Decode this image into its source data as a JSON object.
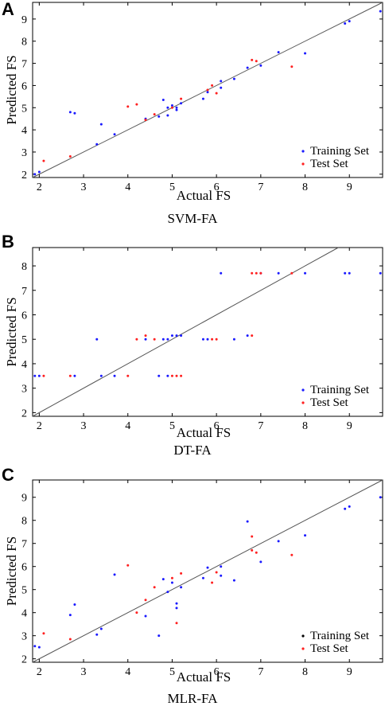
{
  "panels": [
    {
      "letter": "A",
      "caption": "SVM-FA"
    },
    {
      "letter": "B",
      "caption": "DT-FA"
    },
    {
      "letter": "C",
      "caption": "MLR-FA"
    }
  ],
  "colors": {
    "training": "#1a1aff",
    "test": "#ff2020",
    "legend_marker_c_training": "#000000",
    "frame": "#000000",
    "diagonal": "#555555"
  },
  "chart_data": [
    {
      "type": "scatter",
      "title": "SVM-FA",
      "xlabel": "Actual FS",
      "ylabel": "Predicted FS",
      "xlim": [
        1.85,
        9.75
      ],
      "ylim": [
        1.85,
        9.75
      ],
      "xticks": [
        2,
        3,
        4,
        5,
        6,
        7,
        8,
        9
      ],
      "yticks": [
        2,
        3,
        4,
        5,
        6,
        7,
        8,
        9
      ],
      "diagonal": true,
      "legend_position": "bottom-right",
      "series": [
        {
          "name": "Training Set",
          "color": "#1a1aff",
          "points": [
            [
              1.9,
              2.0
            ],
            [
              2.0,
              2.1
            ],
            [
              2.7,
              4.8
            ],
            [
              2.8,
              4.75
            ],
            [
              3.3,
              3.35
            ],
            [
              3.4,
              4.25
            ],
            [
              3.7,
              3.8
            ],
            [
              4.4,
              4.5
            ],
            [
              4.7,
              4.6
            ],
            [
              4.8,
              5.35
            ],
            [
              4.9,
              4.65
            ],
            [
              4.9,
              5.0
            ],
            [
              5.0,
              5.1
            ],
            [
              5.1,
              4.9
            ],
            [
              5.1,
              5.0
            ],
            [
              5.2,
              5.2
            ],
            [
              5.7,
              5.4
            ],
            [
              5.8,
              5.7
            ],
            [
              6.1,
              6.2
            ],
            [
              6.1,
              5.9
            ],
            [
              6.4,
              6.3
            ],
            [
              6.7,
              6.8
            ],
            [
              7.0,
              6.9
            ],
            [
              7.4,
              7.5
            ],
            [
              8.0,
              7.45
            ],
            [
              8.9,
              8.8
            ],
            [
              9.0,
              8.9
            ],
            [
              9.7,
              9.35
            ]
          ]
        },
        {
          "name": "Test Set",
          "color": "#ff2020",
          "points": [
            [
              2.1,
              2.6
            ],
            [
              2.7,
              2.8
            ],
            [
              4.0,
              5.05
            ],
            [
              4.2,
              5.15
            ],
            [
              4.4,
              4.45
            ],
            [
              4.6,
              4.7
            ],
            [
              5.0,
              5.0
            ],
            [
              5.2,
              5.4
            ],
            [
              5.8,
              5.8
            ],
            [
              5.9,
              6.0
            ],
            [
              6.0,
              5.65
            ],
            [
              6.8,
              7.15
            ],
            [
              6.9,
              7.1
            ],
            [
              7.7,
              6.85
            ]
          ]
        }
      ]
    },
    {
      "type": "scatter",
      "title": "DT-FA",
      "xlabel": "Actual FS",
      "ylabel": "Predicted FS",
      "xlim": [
        1.85,
        9.75
      ],
      "ylim": [
        1.85,
        8.75
      ],
      "xticks": [
        2,
        3,
        4,
        5,
        6,
        7,
        8,
        9
      ],
      "yticks": [
        2,
        3,
        4,
        5,
        6,
        7,
        8
      ],
      "diagonal": true,
      "legend_position": "bottom-right",
      "series": [
        {
          "name": "Training Set",
          "color": "#1a1aff",
          "points": [
            [
              1.9,
              3.5
            ],
            [
              2.0,
              3.5
            ],
            [
              2.8,
              3.5
            ],
            [
              3.3,
              5.0
            ],
            [
              3.4,
              3.5
            ],
            [
              3.7,
              3.5
            ],
            [
              4.4,
              5.0
            ],
            [
              4.7,
              3.5
            ],
            [
              4.8,
              5.0
            ],
            [
              4.9,
              3.5
            ],
            [
              4.9,
              5.0
            ],
            [
              5.0,
              5.15
            ],
            [
              5.1,
              5.15
            ],
            [
              5.2,
              5.15
            ],
            [
              5.7,
              5.0
            ],
            [
              5.8,
              5.0
            ],
            [
              6.1,
              7.7
            ],
            [
              6.4,
              5.0
            ],
            [
              6.7,
              5.15
            ],
            [
              7.0,
              7.7
            ],
            [
              7.4,
              7.7
            ],
            [
              8.0,
              7.7
            ],
            [
              8.9,
              7.7
            ],
            [
              9.0,
              7.7
            ],
            [
              9.7,
              7.7
            ]
          ]
        },
        {
          "name": "Test Set",
          "color": "#ff2020",
          "points": [
            [
              2.1,
              3.5
            ],
            [
              2.7,
              3.5
            ],
            [
              4.0,
              3.5
            ],
            [
              4.2,
              5.0
            ],
            [
              4.4,
              5.15
            ],
            [
              4.6,
              5.0
            ],
            [
              5.0,
              3.5
            ],
            [
              5.1,
              3.5
            ],
            [
              5.2,
              3.5
            ],
            [
              5.9,
              5.0
            ],
            [
              6.0,
              5.0
            ],
            [
              6.8,
              7.7
            ],
            [
              6.8,
              5.15
            ],
            [
              6.9,
              7.7
            ],
            [
              7.0,
              7.7
            ],
            [
              7.7,
              7.7
            ]
          ]
        }
      ]
    },
    {
      "type": "scatter",
      "title": "MLR-FA",
      "xlabel": "Actual FS",
      "ylabel": "Predicted FS",
      "xlim": [
        1.85,
        9.75
      ],
      "ylim": [
        1.85,
        9.75
      ],
      "xticks": [
        2,
        3,
        4,
        5,
        6,
        7,
        8,
        9
      ],
      "yticks": [
        2,
        3,
        4,
        5,
        6,
        7,
        8,
        9
      ],
      "diagonal": true,
      "legend_position": "bottom-right",
      "series": [
        {
          "name": "Training Set",
          "color": "#1a1aff",
          "points": [
            [
              1.9,
              2.55
            ],
            [
              2.0,
              2.5
            ],
            [
              2.7,
              3.9
            ],
            [
              2.8,
              4.35
            ],
            [
              3.3,
              3.05
            ],
            [
              3.4,
              3.3
            ],
            [
              3.7,
              5.65
            ],
            [
              4.4,
              3.85
            ],
            [
              4.7,
              3.0
            ],
            [
              4.8,
              5.45
            ],
            [
              4.9,
              4.9
            ],
            [
              5.0,
              5.3
            ],
            [
              5.1,
              4.4
            ],
            [
              5.1,
              4.2
            ],
            [
              5.2,
              5.1
            ],
            [
              5.7,
              5.5
            ],
            [
              5.8,
              5.95
            ],
            [
              6.1,
              6.0
            ],
            [
              6.1,
              5.6
            ],
            [
              6.4,
              5.4
            ],
            [
              6.7,
              7.95
            ],
            [
              7.0,
              6.2
            ],
            [
              7.4,
              7.1
            ],
            [
              8.0,
              7.35
            ],
            [
              8.9,
              8.5
            ],
            [
              9.0,
              8.6
            ],
            [
              9.7,
              9.0
            ]
          ]
        },
        {
          "name": "Test Set",
          "color": "#ff2020",
          "points": [
            [
              2.1,
              3.1
            ],
            [
              2.7,
              2.85
            ],
            [
              4.0,
              6.05
            ],
            [
              4.2,
              4.0
            ],
            [
              4.4,
              4.55
            ],
            [
              4.6,
              5.1
            ],
            [
              5.0,
              5.5
            ],
            [
              5.1,
              3.55
            ],
            [
              5.2,
              5.7
            ],
            [
              5.9,
              5.3
            ],
            [
              6.0,
              5.75
            ],
            [
              6.8,
              6.7
            ],
            [
              6.8,
              7.3
            ],
            [
              6.9,
              6.6
            ],
            [
              7.7,
              6.5
            ]
          ]
        }
      ]
    }
  ]
}
